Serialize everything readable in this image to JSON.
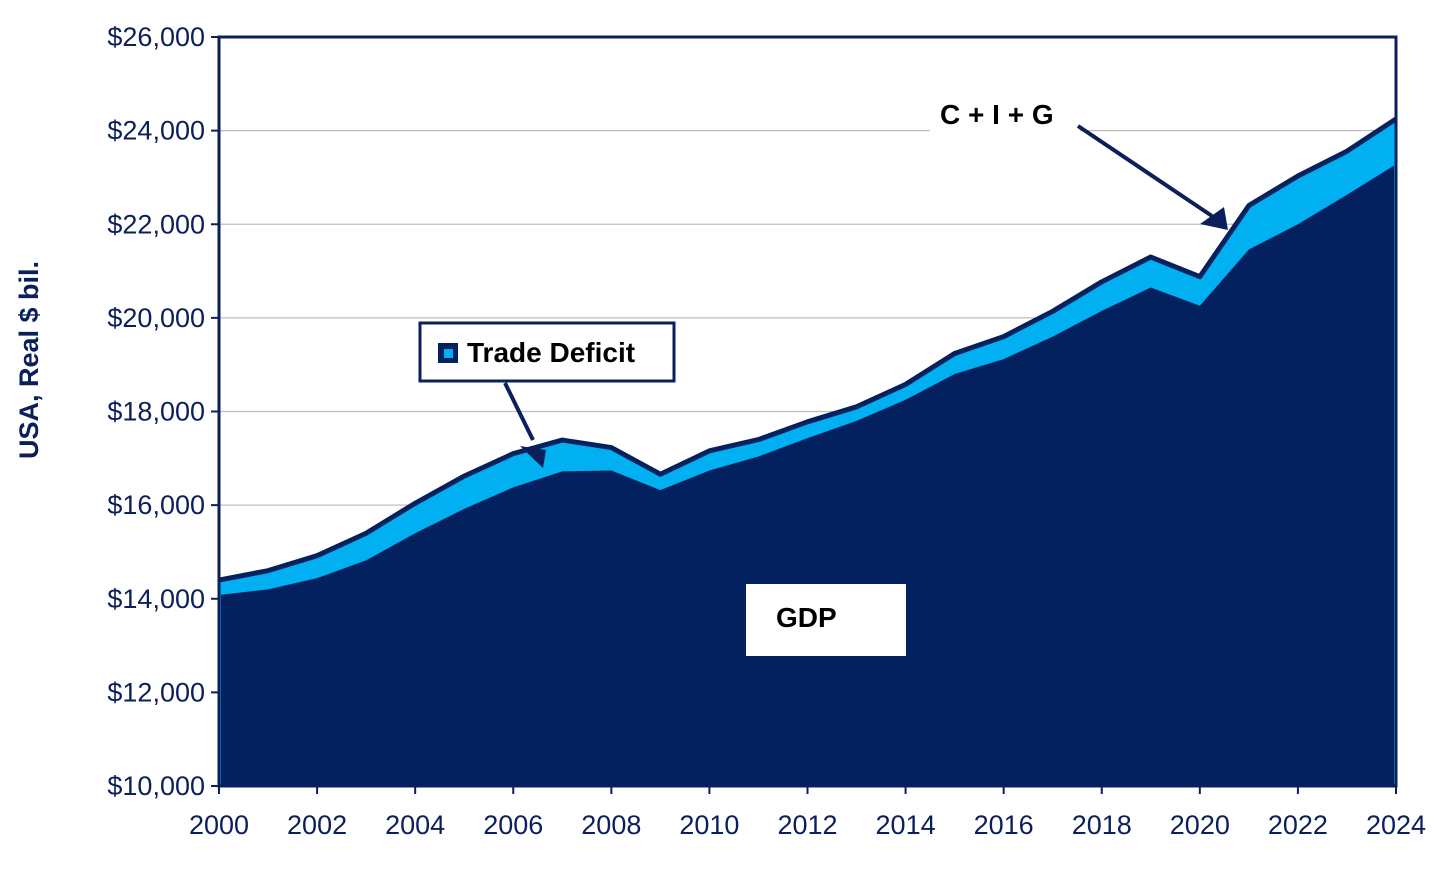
{
  "chart_data": {
    "type": "area",
    "x": [
      2000,
      2001,
      2002,
      2003,
      2004,
      2005,
      2006,
      2007,
      2008,
      2009,
      2010,
      2011,
      2012,
      2013,
      2014,
      2015,
      2016,
      2017,
      2018,
      2019,
      2020,
      2021,
      2022,
      2023,
      2024
    ],
    "series": [
      {
        "name": "GDP",
        "values": [
          14080,
          14200,
          14440,
          14820,
          15400,
          15920,
          16380,
          16720,
          16740,
          16320,
          16740,
          17040,
          17430,
          17800,
          18250,
          18800,
          19120,
          19600,
          20150,
          20650,
          20260,
          21460,
          22000,
          22630,
          23280
        ]
      },
      {
        "name": "C + I + G",
        "values": [
          14400,
          14600,
          14920,
          15400,
          16040,
          16620,
          17100,
          17390,
          17230,
          16660,
          17160,
          17400,
          17780,
          18100,
          18580,
          19240,
          19600,
          20140,
          20770,
          21300,
          20880,
          22400,
          23030,
          23560,
          24250
        ]
      }
    ],
    "xticks": [
      "2000",
      "2002",
      "2004",
      "2006",
      "2008",
      "2010",
      "2012",
      "2014",
      "2016",
      "2018",
      "2020",
      "2022",
      "2024"
    ],
    "yticks": [
      "$10,000",
      "$12,000",
      "$14,000",
      "$16,000",
      "$18,000",
      "$20,000",
      "$22,000",
      "$24,000",
      "$26,000"
    ],
    "ylim": [
      10000,
      26000
    ],
    "xlim": [
      2000,
      2024
    ],
    "ylabel": "USA, Real $ bil.",
    "xlabel": "",
    "grid": "horizontal",
    "annotations": {
      "trade_deficit": "Trade Deficit",
      "cig": "C + I + G",
      "gdp": "GDP"
    },
    "colors": {
      "gdp": "#03215e",
      "deficit": "#00b0f0",
      "axis": "#0b1f5c",
      "grid": "#bfbfbf"
    }
  }
}
